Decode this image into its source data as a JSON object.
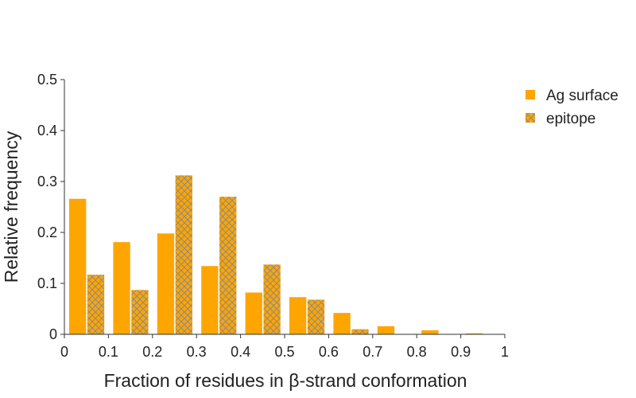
{
  "chart_data": {
    "type": "bar",
    "xlabel": "Fraction of residues in β-strand conformation",
    "ylabel": "Relative frequency",
    "xlim": [
      0,
      1
    ],
    "ylim": [
      0,
      0.5
    ],
    "x_ticks": [
      "0",
      "0.1",
      "0.2",
      "0.3",
      "0.4",
      "0.5",
      "0.6",
      "0.7",
      "0.8",
      "0.9",
      "1"
    ],
    "y_ticks": [
      "0",
      "0.1",
      "0.2",
      "0.3",
      "0.4",
      "0.5"
    ],
    "bin_width": 0.1,
    "bin_starts": [
      0,
      0.1,
      0.2,
      0.3,
      0.4,
      0.5,
      0.6,
      0.7,
      0.8,
      0.9
    ],
    "series": [
      {
        "name": "Ag surface",
        "pattern": "solid",
        "values": [
          0.266,
          0.181,
          0.198,
          0.134,
          0.082,
          0.073,
          0.042,
          0.016,
          0.008,
          0.002
        ]
      },
      {
        "name": "epitope",
        "pattern": "crosshatch",
        "values": [
          0.117,
          0.087,
          0.312,
          0.27,
          0.137,
          0.068,
          0.01,
          0,
          0,
          0
        ]
      }
    ],
    "grid": false,
    "legend": "top-right",
    "colors": {
      "bar": "#FFA500",
      "hatch": "#8A8A8A",
      "axis": "#333333"
    }
  }
}
